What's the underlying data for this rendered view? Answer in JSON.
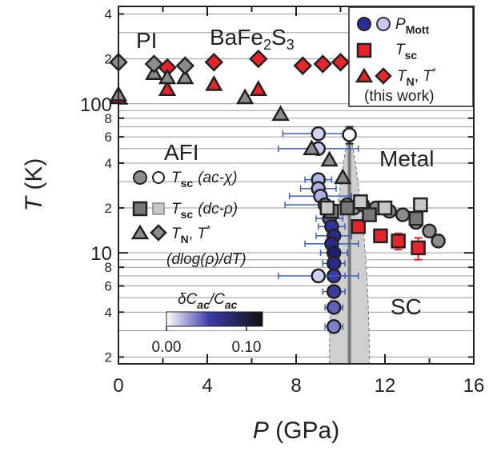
{
  "chart_data": {
    "type": "scatter",
    "x_label": {
      "symbol": "P",
      "unit": "(GPa)"
    },
    "y_label": {
      "symbol": "T",
      "unit": "(K)"
    },
    "xlim": [
      0,
      16
    ],
    "xticks": [
      0,
      4,
      8,
      12,
      16
    ],
    "x_minor_ticks": [
      2,
      6,
      10,
      14
    ],
    "ylim": [
      1.8,
      450
    ],
    "log_y": true,
    "yticks": [
      2,
      4,
      6,
      8,
      10,
      {
        "value": 20,
        "label": "2"
      },
      {
        "value": 40,
        "label": "4"
      },
      {
        "value": 60,
        "label": "6"
      },
      {
        "value": 80,
        "label": "8"
      },
      100,
      {
        "value": 200,
        "label": "2"
      },
      {
        "value": 400,
        "label": "4"
      }
    ],
    "minor_grid": [
      3,
      5,
      7,
      9,
      30,
      50,
      70,
      90,
      300
    ],
    "grid": true,
    "annotations": {
      "pi": "PI",
      "compound": [
        "BaFe",
        "2",
        "S",
        "3"
      ],
      "afi": "AFI",
      "metal": "Metal",
      "sc": "SC"
    },
    "legend": {
      "entries": [
        [
          "P",
          "Mott"
        ],
        [
          "T",
          "sc"
        ],
        [
          "T",
          "N",
          ", ",
          "T",
          "*"
        ]
      ],
      "note": "(this work)"
    },
    "literature_legend": [
      [
        "T",
        "sc",
        "(ac-χ)"
      ],
      [
        "T",
        "sc",
        "(dc-ρ)"
      ],
      [
        "T",
        "N",
        ", ",
        "T",
        "*"
      ]
    ],
    "literature_note": "(dlog(ρ)/dT)",
    "colorbar": {
      "label": [
        "δC",
        "ac",
        "/C",
        "ac"
      ],
      "lim": [
        0,
        0.12
      ],
      "ticks": [
        {
          "value": 0,
          "label": "0.00"
        },
        {
          "value": 0.1,
          "label": "0.10"
        }
      ]
    },
    "mott_band": {
      "x_left": 9.5,
      "x_right": 11.3,
      "x_center": 10.4,
      "t_top": 65
    },
    "series": [
      {
        "marker": "circle",
        "err_color": "#3a5ec0",
        "x": [
          9.0,
          9.0,
          9.0,
          9.0,
          9.1,
          9.3,
          9.5,
          9.6,
          9.7,
          9.6,
          9.7,
          9.7,
          9.7,
          9.0,
          9.7,
          9.7,
          9.7
        ],
        "values": [
          63,
          50,
          31,
          27,
          24,
          21,
          17,
          15,
          13,
          11.5,
          10,
          8.5,
          7,
          7,
          5.5,
          4.3,
          3.2
        ],
        "xerr": [
          1.6,
          1.8,
          0.6,
          0.8,
          1.4,
          1.8,
          0.6,
          0.6,
          0.8,
          1.2,
          0.6,
          0.5,
          0.5,
          1.8,
          0.5,
          0.4,
          0.4
        ],
        "colors": [
          "#d4d4f2",
          "#c8c8ee",
          "#b4b4e4",
          "#b0b0e0",
          "#b0b0e0",
          "#8888cc",
          "#5555aa",
          "#33339a",
          "#2a2a8a",
          "#2a2a8a",
          "#1e1e70",
          "#2a2a8a",
          "#3a3aa0",
          "#d0d0f0",
          "#3a3aa0",
          "#6060b8",
          "#8080c8"
        ]
      },
      {
        "marker": "square",
        "color": "#e6252a",
        "err_color": "#e6252a",
        "x": [
          10.8,
          11.8,
          12.6,
          13.5
        ],
        "values": [
          15,
          13,
          12,
          10.8
        ],
        "yerr": [
          1,
          1,
          1.5,
          1.8
        ]
      },
      {
        "marker": "triangle",
        "color": "#e6252a",
        "x": [
          0,
          2.2,
          4.3,
          6.3
        ],
        "values": [
          110,
          125,
          135,
          125
        ]
      },
      {
        "marker": "diamond",
        "color": "#e6252a",
        "x": [
          2.2,
          4.3,
          6.3,
          8.3,
          9.2,
          10.0
        ],
        "values": [
          175,
          190,
          200,
          180,
          185,
          190
        ]
      },
      {
        "marker": "circle",
        "color": "#8c8c8c",
        "x": [
          10.3,
          10.6,
          11.0,
          11.6,
          12.2,
          12.8,
          13.4,
          14.0,
          14.4
        ],
        "values": [
          21,
          20,
          21,
          20,
          19,
          18,
          16,
          14,
          12
        ]
      },
      {
        "marker": "circle",
        "color": "#ffffff",
        "err_color": "#222222",
        "x": [
          10.4
        ],
        "values": [
          62
        ],
        "yerr": [
          8
        ]
      },
      {
        "marker": "square",
        "color": "#777777",
        "x": [
          9.6,
          10.3,
          11.3,
          13.4
        ],
        "values": [
          19,
          20,
          18,
          17
        ]
      },
      {
        "marker": "square",
        "color": "#c8c8c8",
        "x": [
          9.4,
          10.9,
          12.0,
          13.6
        ],
        "values": [
          20,
          22,
          20,
          21
        ]
      },
      {
        "marker": "triangle",
        "color": "#8c8c8c",
        "x": [
          0,
          1.6,
          2.2,
          3.0,
          5.7,
          7.3,
          8.7,
          9.5,
          10.1
        ],
        "values": [
          115,
          160,
          150,
          150,
          110,
          85,
          50,
          42,
          32
        ]
      },
      {
        "marker": "diamond",
        "color": "#8c8c8c",
        "x": [
          0,
          1.6,
          3.0
        ],
        "values": [
          190,
          185,
          180
        ]
      }
    ]
  }
}
